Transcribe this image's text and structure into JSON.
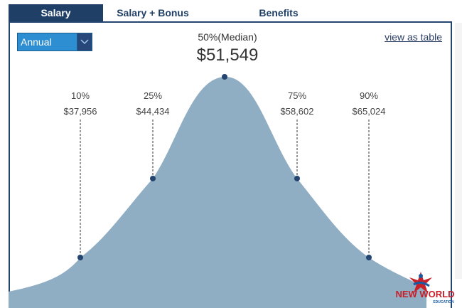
{
  "tabs": [
    {
      "label": "Salary",
      "active": true
    },
    {
      "label": "Salary + Bonus",
      "active": false
    },
    {
      "label": "Benefits",
      "active": false
    }
  ],
  "period_select": {
    "value": "Annual"
  },
  "view_as_table": "view as table",
  "median": {
    "label": "50%(Median)",
    "value": "$51,549"
  },
  "colors": {
    "tab_active": "#1f3f66",
    "curve_fill": "#8fadc3",
    "marker": "#23456f",
    "select_bg": "#2d8fd2"
  },
  "logo": {
    "text": "NEW WORLD",
    "subtext": "EDUCATION"
  },
  "chart_data": {
    "type": "area",
    "title": "",
    "xlabel": "",
    "ylabel": "",
    "distribution": "bell curve of salary",
    "percentiles": [
      {
        "label": "10%",
        "value": "$37,956",
        "salary": 37956
      },
      {
        "label": "25%",
        "value": "$44,434",
        "salary": 44434
      },
      {
        "label": "50%(Median)",
        "value": "$51,549",
        "salary": 51549
      },
      {
        "label": "75%",
        "value": "$58,602",
        "salary": 58602
      },
      {
        "label": "90%",
        "value": "$65,024",
        "salary": 65024
      }
    ]
  }
}
